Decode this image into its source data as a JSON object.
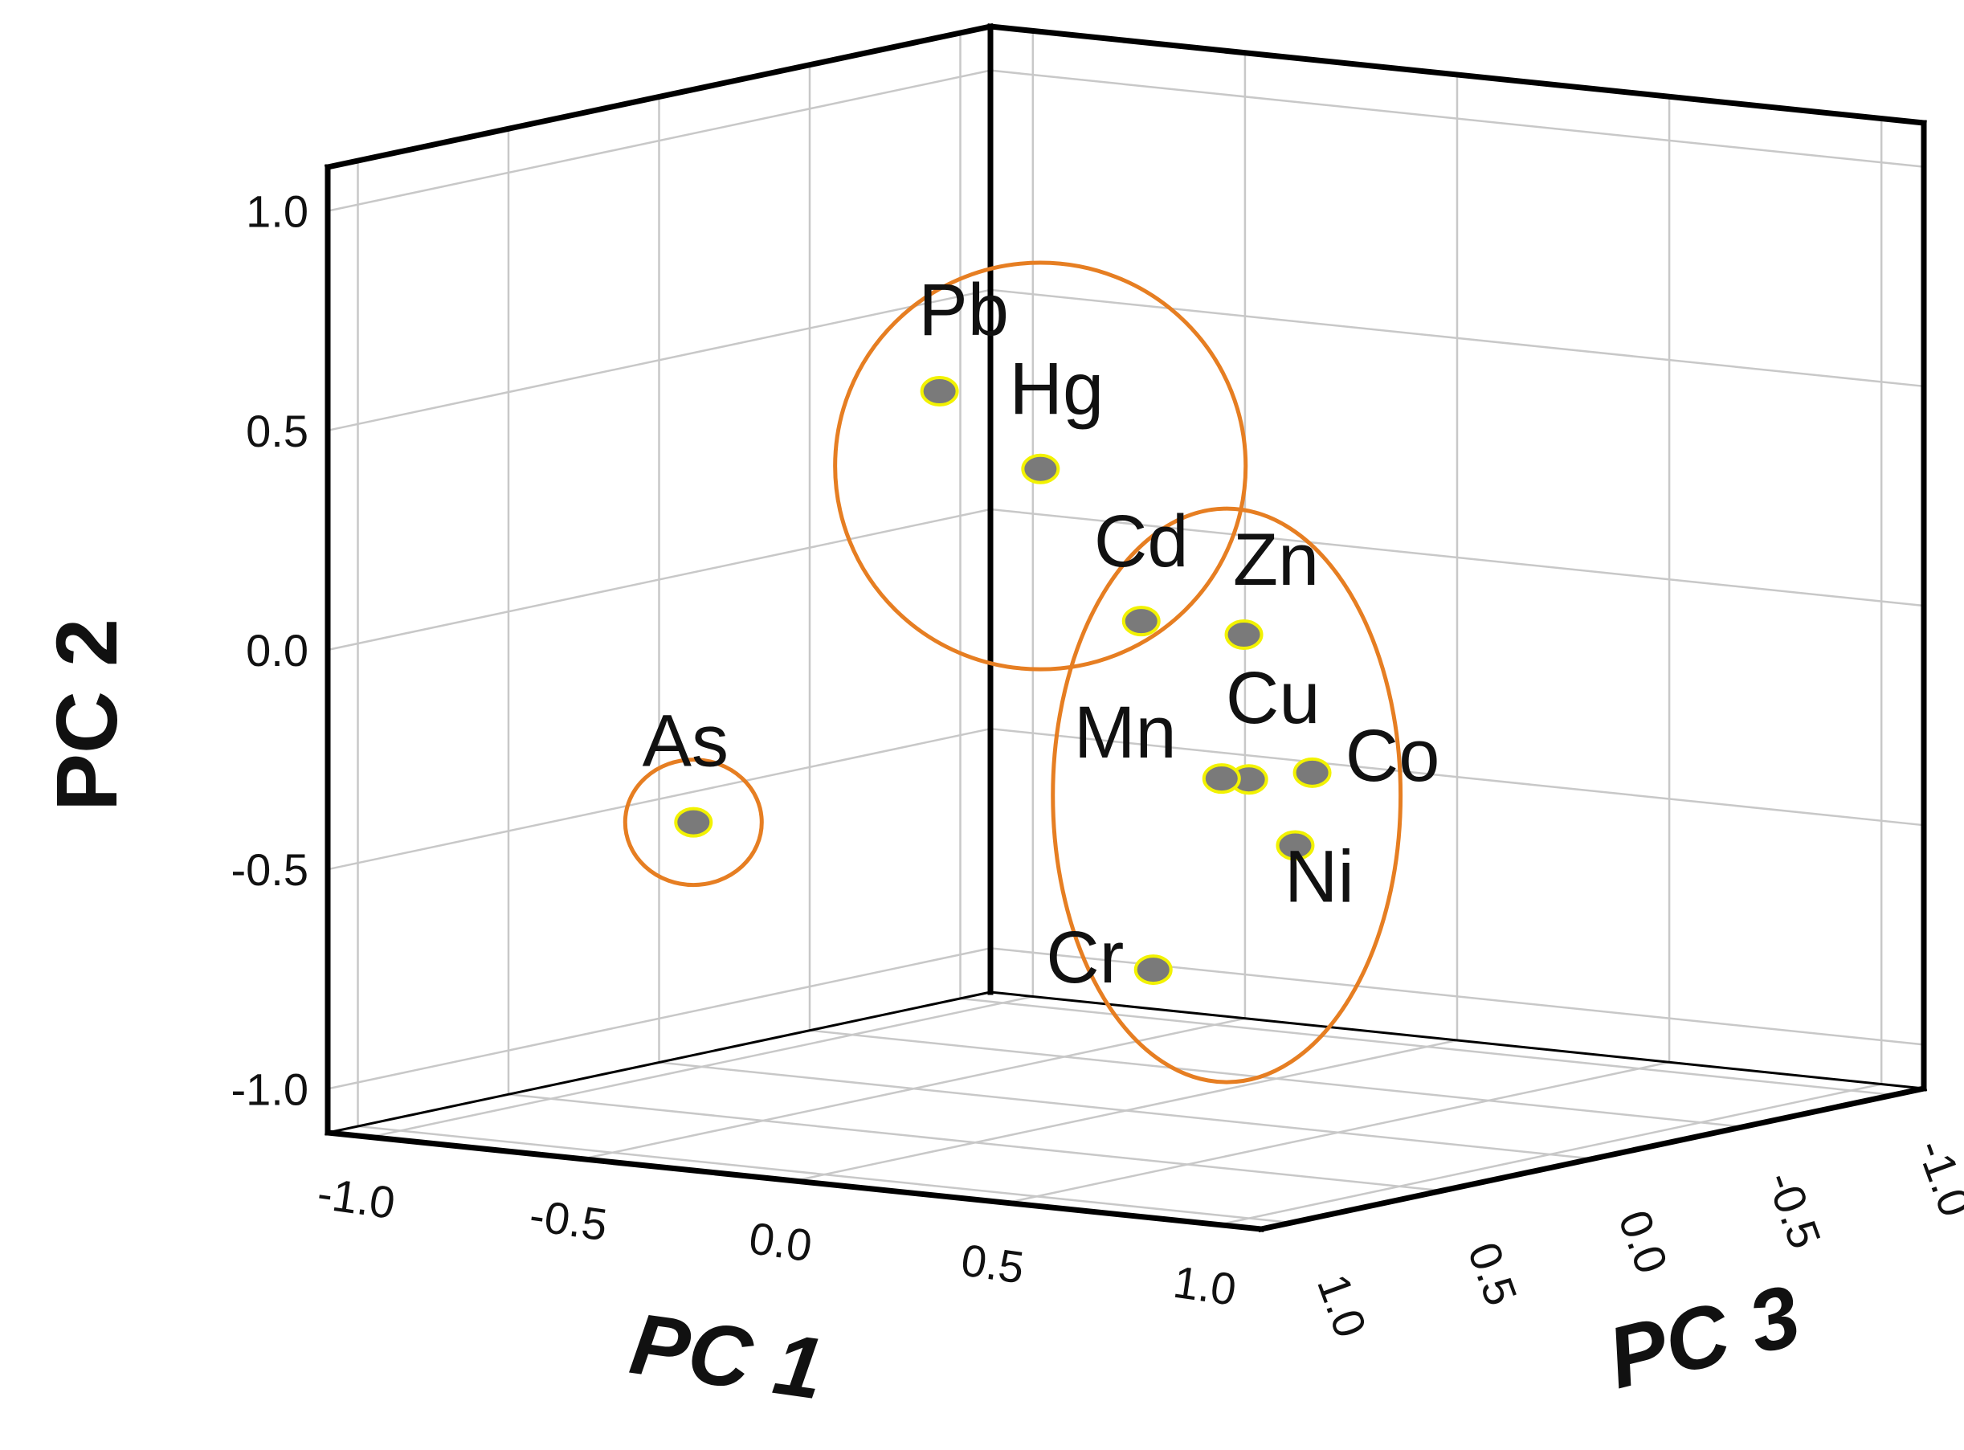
{
  "chart_data": {
    "type": "scatter",
    "projection": "3d",
    "title": "",
    "axes": {
      "pc1": {
        "label": "PC 1",
        "range": [
          -1.1,
          1.1
        ],
        "ticks": [
          -1.0,
          -0.5,
          0.0,
          0.5,
          1.0
        ],
        "tick_labels": [
          "-1.0",
          "-0.5",
          "0.0",
          "0.5",
          "1.0"
        ]
      },
      "pc2": {
        "label": "PC 2",
        "range": [
          -1.1,
          1.1
        ],
        "ticks": [
          -1.0,
          -0.5,
          0.0,
          0.5,
          1.0
        ],
        "tick_labels": [
          "-1.0",
          "-0.5",
          "0.0",
          "0.5",
          "1.0"
        ]
      },
      "pc3": {
        "label": "PC 3",
        "range": [
          -1.1,
          1.1
        ],
        "ticks": [
          1.0,
          0.5,
          0.0,
          -0.5,
          -1.0
        ],
        "tick_labels": [
          "1.0",
          "0.5",
          "0.0",
          "-0.5",
          "-1.0"
        ]
      }
    },
    "grid": true,
    "points": [
      {
        "label": "Pb",
        "pc1": 0.2,
        "pc2": 0.69,
        "pc3": 0.9
      },
      {
        "label": "Hg",
        "pc1": 0.58,
        "pc2": 0.58,
        "pc3": 1.1
      },
      {
        "label": "Cd",
        "pc1": 0.86,
        "pc2": 0.27,
        "pc3": 1.16
      },
      {
        "label": "Zn",
        "pc1": 0.96,
        "pc2": 0.22,
        "pc3": 0.96
      },
      {
        "label": "Cu",
        "pc1": 1.0,
        "pc2": -0.1,
        "pc3": 1.0
      },
      {
        "label": "Mn",
        "pc1": 0.95,
        "pc2": -0.1,
        "pc3": 1.02
      },
      {
        "label": "Co",
        "pc1": 1.05,
        "pc2": -0.1,
        "pc3": 0.86
      },
      {
        "label": "Ni",
        "pc1": 1.01,
        "pc2": -0.27,
        "pc3": 0.86
      },
      {
        "label": "Cr",
        "pc1": 0.86,
        "pc2": -0.53,
        "pc3": 1.12
      },
      {
        "label": "As",
        "pc1": -0.38,
        "pc2": -0.35,
        "pc3": 0.9
      }
    ],
    "groups": [
      {
        "name": "group-pb-hg-cd",
        "members": [
          "Pb",
          "Hg",
          "Cd"
        ]
      },
      {
        "name": "group-zn-cu-mn-co-ni-cr-cd",
        "members": [
          "Cd",
          "Zn",
          "Cu",
          "Mn",
          "Co",
          "Ni",
          "Cr"
        ]
      },
      {
        "name": "group-as",
        "members": [
          "As"
        ]
      }
    ],
    "colors": {
      "point_fill": "#7a7a7a",
      "point_stroke": "#f2f200",
      "ellipse": "#e67e22",
      "grid": "#c8c8c8",
      "frame": "#000000"
    }
  }
}
